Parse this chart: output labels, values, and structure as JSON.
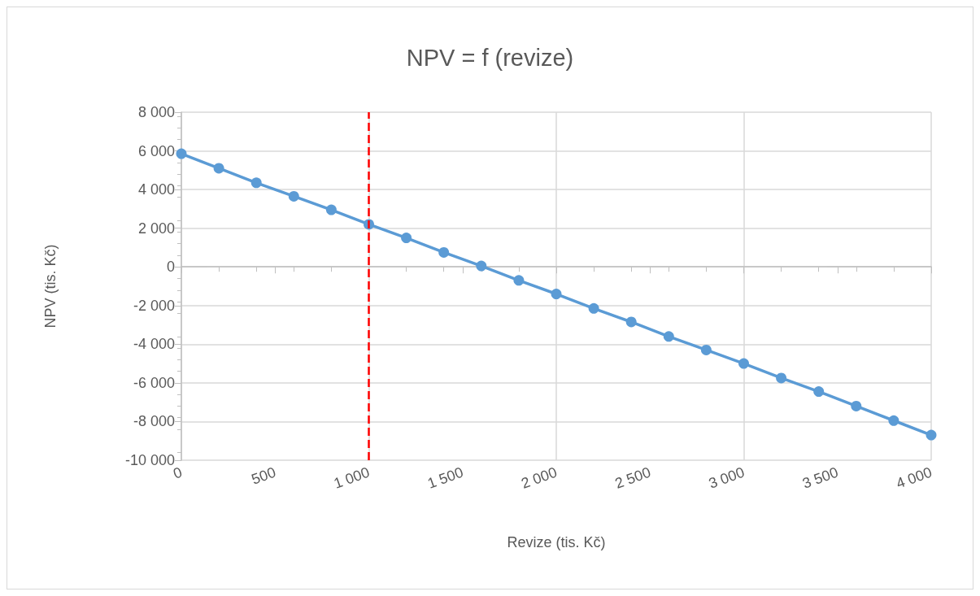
{
  "chart_data": {
    "type": "line",
    "title": "NPV = f (revize)",
    "xlabel": "Revize (tis. Kč)",
    "ylabel": "NPV (tis. Kč)",
    "x": [
      0,
      200,
      400,
      600,
      800,
      1000,
      1200,
      1400,
      1600,
      1800,
      2000,
      2200,
      2400,
      2600,
      2800,
      3000,
      3200,
      3400,
      3600,
      3800,
      4000
    ],
    "series": [
      {
        "color": "#5b9bd5",
        "values": [
          5850,
          5100,
          4350,
          3650,
          2950,
          2200,
          1500,
          750,
          50,
          -700,
          -1400,
          -2150,
          -2850,
          -3600,
          -4300,
          -5000,
          -5750,
          -6450,
          -7200,
          -7950,
          -8700
        ]
      }
    ],
    "xlim": [
      0,
      4000
    ],
    "xticks": [
      0,
      500,
      {
        "value": 1000,
        "label": "1 000"
      },
      {
        "value": 1500,
        "label": "1 500"
      },
      {
        "value": 2000,
        "label": "2 000"
      },
      {
        "value": 2500,
        "label": "2 500"
      },
      {
        "value": 3000,
        "label": "3 000"
      },
      {
        "value": 3500,
        "label": "3 500"
      },
      {
        "value": 4000,
        "label": "4 000"
      }
    ],
    "ylim": [
      -10000,
      8000
    ],
    "yticks": [
      {
        "value": -10000,
        "label": "-10 000"
      },
      {
        "value": -8000,
        "label": "-8 000"
      },
      {
        "value": -6000,
        "label": "-6 000"
      },
      {
        "value": -4000,
        "label": "-4 000"
      },
      {
        "value": -2000,
        "label": "-2 000"
      },
      0,
      {
        "value": 2000,
        "label": "2 000"
      },
      {
        "value": 4000,
        "label": "4 000"
      },
      {
        "value": 6000,
        "label": "6 000"
      },
      {
        "value": 8000,
        "label": "8 000"
      }
    ],
    "ref_lines": [
      {
        "axis": "x",
        "value": 1000,
        "color": "#ff0000",
        "line_style": "dashed"
      }
    ],
    "grid": true,
    "marker": "circle",
    "line_style": "solid"
  }
}
